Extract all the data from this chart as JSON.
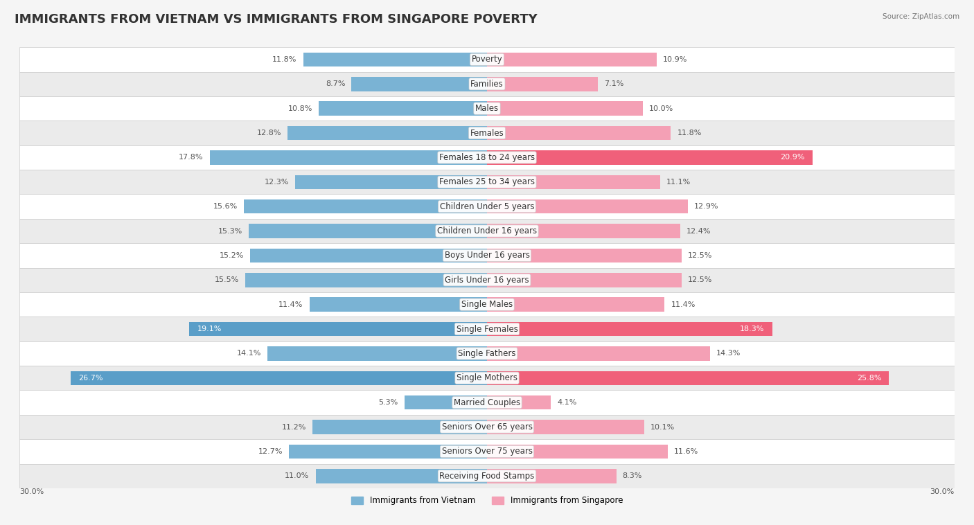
{
  "title": "IMMIGRANTS FROM VIETNAM VS IMMIGRANTS FROM SINGAPORE POVERTY",
  "source": "Source: ZipAtlas.com",
  "categories": [
    "Poverty",
    "Families",
    "Males",
    "Females",
    "Females 18 to 24 years",
    "Females 25 to 34 years",
    "Children Under 5 years",
    "Children Under 16 years",
    "Boys Under 16 years",
    "Girls Under 16 years",
    "Single Males",
    "Single Females",
    "Single Fathers",
    "Single Mothers",
    "Married Couples",
    "Seniors Over 65 years",
    "Seniors Over 75 years",
    "Receiving Food Stamps"
  ],
  "vietnam_values": [
    11.8,
    8.7,
    10.8,
    12.8,
    17.8,
    12.3,
    15.6,
    15.3,
    15.2,
    15.5,
    11.4,
    19.1,
    14.1,
    26.7,
    5.3,
    11.2,
    12.7,
    11.0
  ],
  "singapore_values": [
    10.9,
    7.1,
    10.0,
    11.8,
    20.9,
    11.1,
    12.9,
    12.4,
    12.5,
    12.5,
    11.4,
    18.3,
    14.3,
    25.8,
    4.1,
    10.1,
    11.6,
    8.3
  ],
  "vietnam_color": "#7ab3d4",
  "singapore_color": "#f4a0b5",
  "vietnam_label": "Immigrants from Vietnam",
  "singapore_label": "Immigrants from Singapore",
  "vietnam_highlight_color": "#5a9ec8",
  "singapore_highlight_color": "#f0607a",
  "highlight_threshold": 18.0,
  "max_value": 30.0,
  "axis_label_left": "30.0%",
  "axis_label_right": "30.0%",
  "background_color": "#f5f5f5",
  "row_bg_colors": [
    "#ffffff",
    "#ebebeb"
  ],
  "title_fontsize": 13,
  "label_fontsize": 8.5,
  "value_fontsize": 8.0
}
